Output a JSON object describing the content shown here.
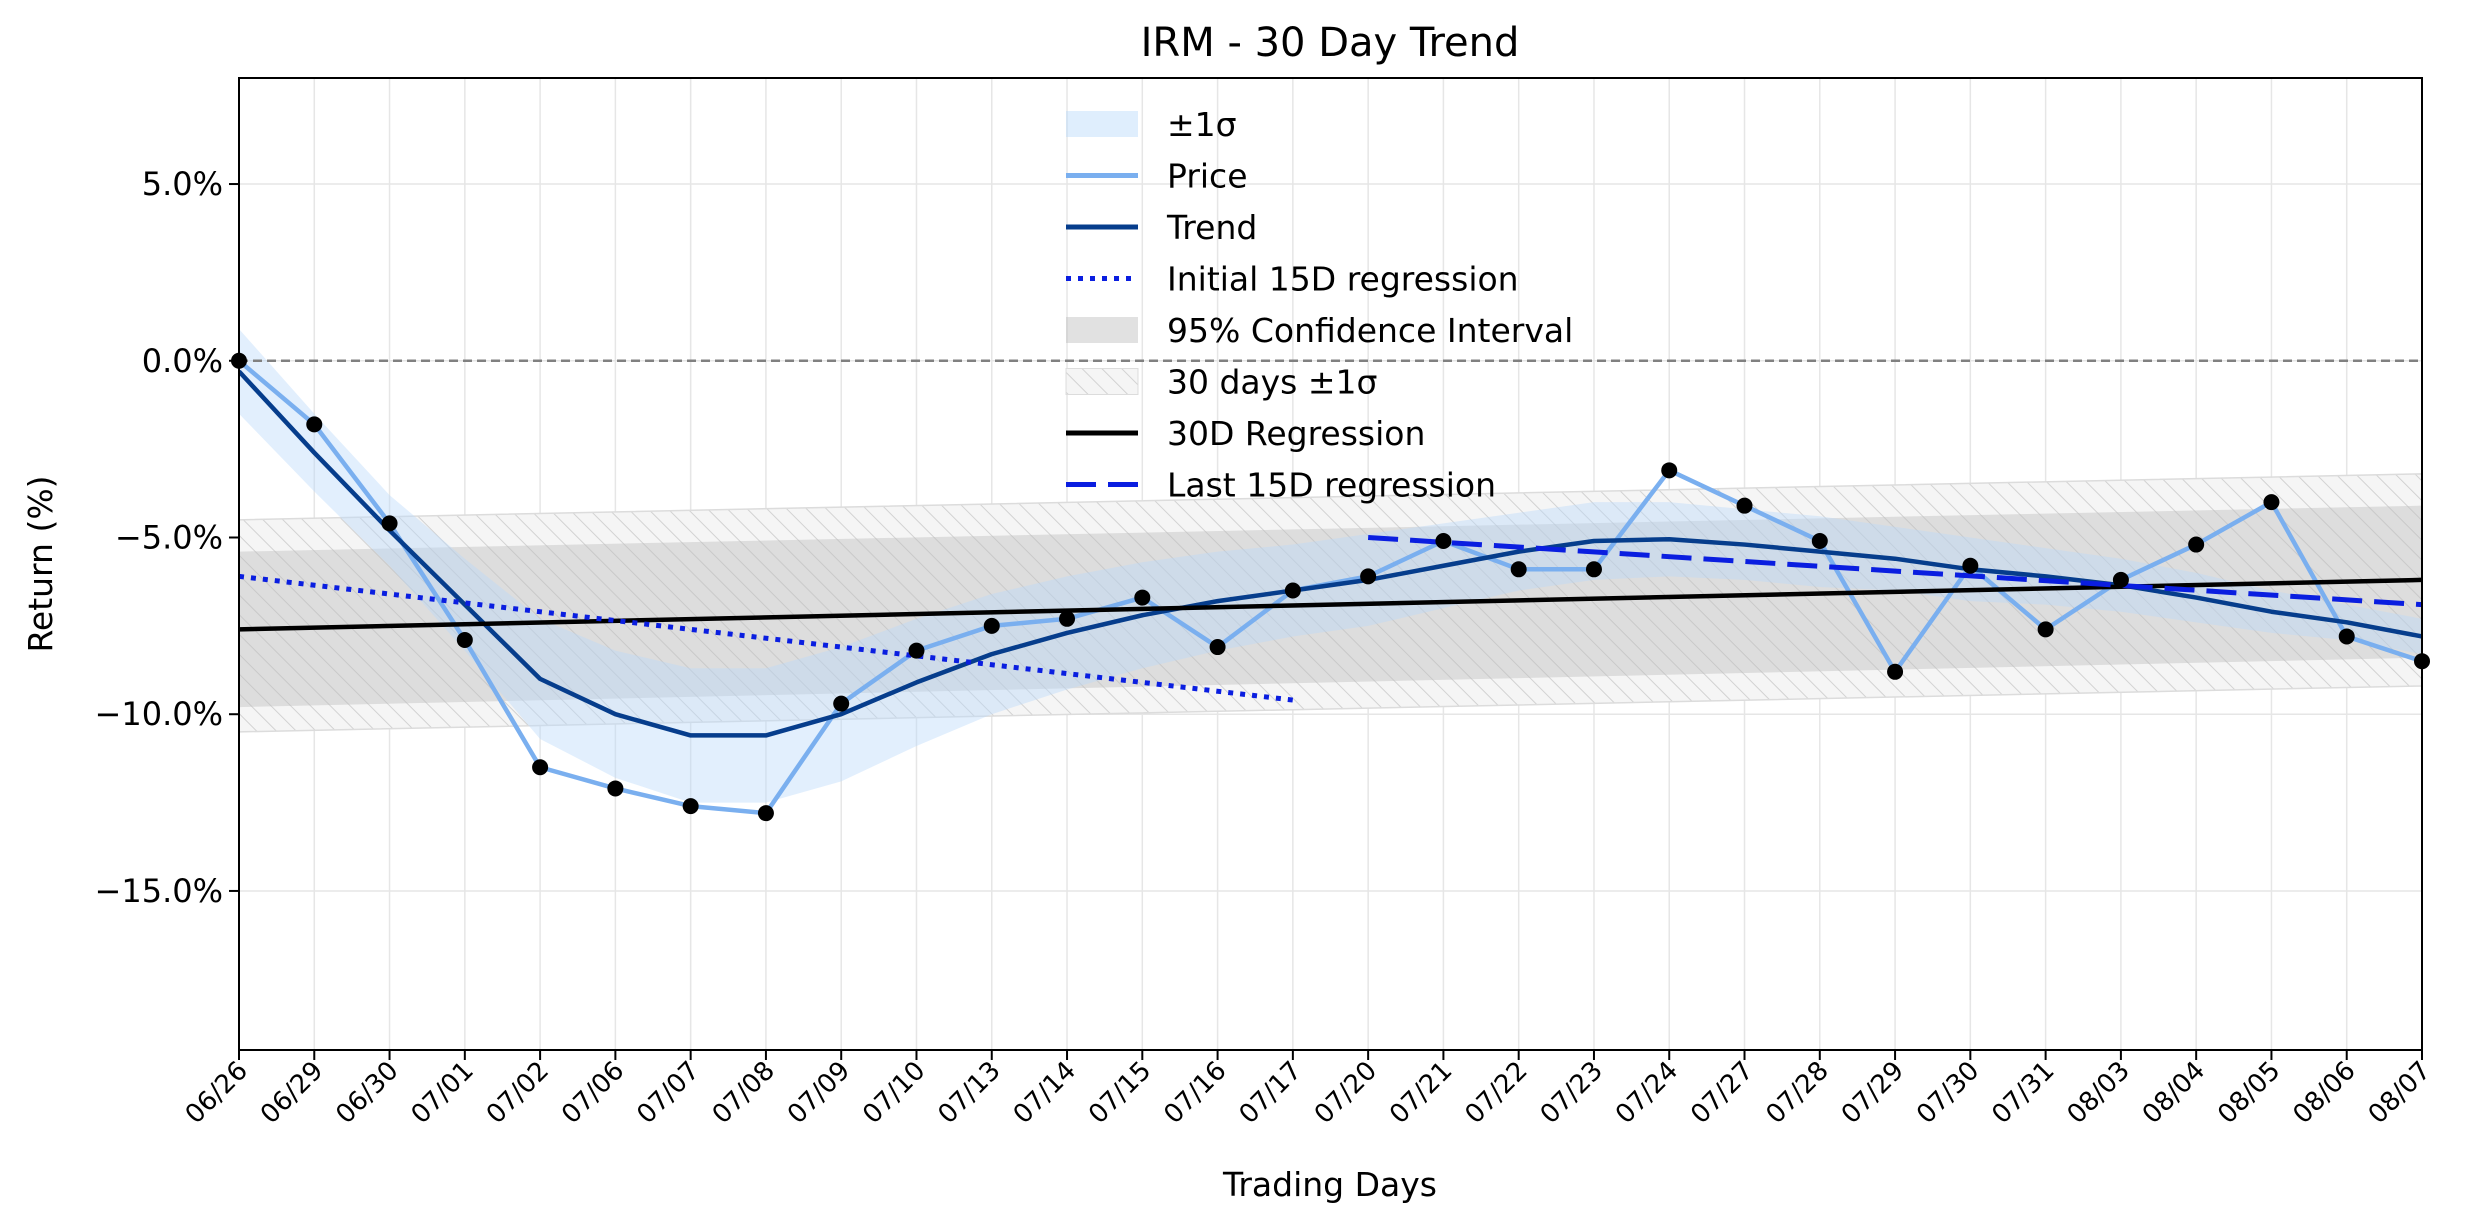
{
  "chart_data": {
    "type": "line",
    "title": "IRM - 30 Day Trend",
    "xlabel": "Trading Days",
    "ylabel": "Return (%)",
    "ylim": [
      -19.5,
      8.0
    ],
    "yticks": [
      5.0,
      0.0,
      -5.0,
      -10.0,
      -15.0
    ],
    "ytick_labels": [
      "5.0%",
      "0.0%",
      "−5.0%",
      "−10.0%",
      "−15.0%"
    ],
    "grid": true,
    "legend_position": "top-center",
    "categories": [
      "06/26",
      "06/29",
      "06/30",
      "07/01",
      "07/02",
      "07/06",
      "07/07",
      "07/08",
      "07/09",
      "07/10",
      "07/13",
      "07/14",
      "07/15",
      "07/16",
      "07/17",
      "07/20",
      "07/21",
      "07/22",
      "07/23",
      "07/24",
      "07/27",
      "07/28",
      "07/29",
      "07/30",
      "07/31",
      "08/03",
      "08/04",
      "08/05",
      "08/06",
      "08/07"
    ],
    "series": [
      {
        "name": "Price",
        "color": "#7aafef",
        "values": [
          0.0,
          -1.8,
          -4.6,
          -7.9,
          -11.5,
          -12.1,
          -12.6,
          -12.8,
          -9.7,
          -8.2,
          -7.5,
          -7.3,
          -6.7,
          -8.1,
          -6.5,
          -6.1,
          -5.1,
          -5.9,
          -5.9,
          -3.1,
          -4.1,
          -5.1,
          -8.8,
          -5.8,
          -7.6,
          -6.2,
          -5.2,
          -4.0,
          -7.8,
          -8.5
        ]
      },
      {
        "name": "Trend",
        "color": "#063d8c",
        "values": [
          -0.3,
          -2.6,
          -4.8,
          -6.9,
          -9.0,
          -10.0,
          -10.6,
          -10.6,
          -10.0,
          -9.1,
          -8.3,
          -7.7,
          -7.2,
          -6.8,
          -6.5,
          -6.2,
          -5.8,
          -5.4,
          -5.1,
          -5.05,
          -5.2,
          -5.4,
          -5.6,
          -5.9,
          -6.1,
          -6.35,
          -6.7,
          -7.1,
          -7.4,
          -7.8
        ]
      },
      {
        "name": "±1σ",
        "color": "#ddecfd",
        "upper": [
          0.9,
          -1.5,
          -3.8,
          -5.6,
          -7.3,
          -8.2,
          -8.7,
          -8.7,
          -8.1,
          -7.3,
          -6.6,
          -6.1,
          -5.7,
          -5.4,
          -5.2,
          -4.9,
          -4.6,
          -4.3,
          -4.0,
          -4.0,
          -4.2,
          -4.4,
          -4.7,
          -5.0,
          -5.3,
          -5.6,
          -6.0,
          -6.5,
          -6.9,
          -7.3
        ],
        "lower": [
          -1.5,
          -3.7,
          -5.8,
          -8.2,
          -10.7,
          -11.8,
          -12.5,
          -12.5,
          -11.9,
          -10.9,
          -10.0,
          -9.3,
          -8.7,
          -8.2,
          -7.8,
          -7.5,
          -7.0,
          -6.5,
          -6.2,
          -6.1,
          -6.2,
          -6.4,
          -6.5,
          -6.8,
          -6.9,
          -7.1,
          -7.4,
          -7.7,
          -7.9,
          -8.3
        ]
      },
      {
        "name": "Initial 15D regression",
        "color": "#0a1ee0",
        "x_range": [
          "06/26",
          "07/17"
        ],
        "y_start": -6.1,
        "y_end": -9.6
      },
      {
        "name": "95% Confidence Interval",
        "color": "#bdbdbd",
        "upper_start": -5.4,
        "upper_end": -4.1,
        "lower_start": -9.8,
        "lower_end": -8.4
      },
      {
        "name": "30 days ±1σ",
        "color": "#d6d6d6",
        "upper_start": -4.5,
        "upper_end": -3.2,
        "lower_start": -10.5,
        "lower_end": -9.2
      },
      {
        "name": "30D Regression",
        "color": "#000000",
        "y_start": -7.6,
        "y_end": -6.2
      },
      {
        "name": "Last 15D regression",
        "color": "#0a1ee0",
        "x_range": [
          "07/20",
          "08/07"
        ],
        "y_start": -5.0,
        "y_end": -6.9
      }
    ],
    "reference_line": {
      "y": 0.0,
      "style": "dashed",
      "color": "#808080"
    }
  }
}
